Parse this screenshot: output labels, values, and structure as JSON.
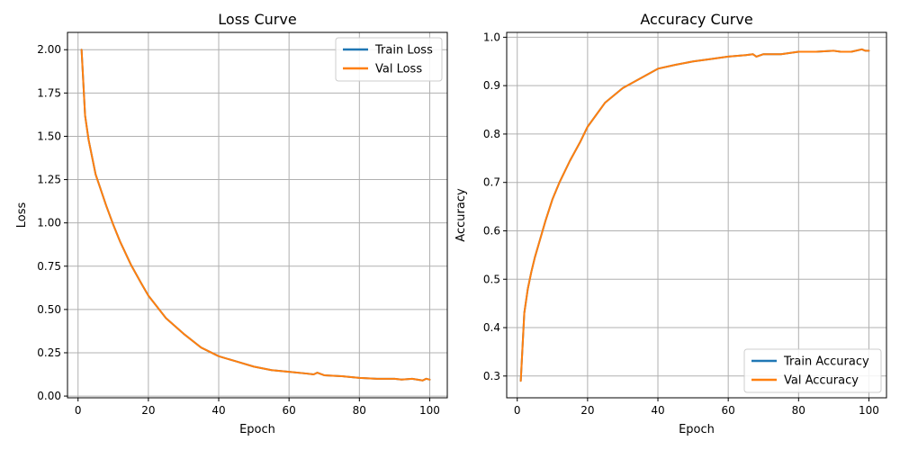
{
  "colors": {
    "train": "#1f77b4",
    "val": "#ff7f0e",
    "grid": "#b0b0b0"
  },
  "chart_data": [
    {
      "type": "line",
      "title": "Loss Curve",
      "xlabel": "Epoch",
      "ylabel": "Loss",
      "xlim": [
        -3,
        105
      ],
      "ylim": [
        -0.01,
        2.1
      ],
      "xticks": [
        0,
        20,
        40,
        60,
        80,
        100
      ],
      "yticks": [
        0.0,
        0.25,
        0.5,
        0.75,
        1.0,
        1.25,
        1.5,
        1.75,
        2.0
      ],
      "ytick_labels": [
        "0.00",
        "0.25",
        "0.50",
        "0.75",
        "1.00",
        "1.25",
        "1.50",
        "1.75",
        "2.00"
      ],
      "grid": true,
      "legend_position": "top-right",
      "x": [
        1,
        2,
        3,
        4,
        5,
        6,
        8,
        10,
        12,
        15,
        18,
        20,
        25,
        30,
        35,
        40,
        45,
        50,
        55,
        60,
        65,
        67,
        68,
        70,
        75,
        80,
        85,
        90,
        92,
        95,
        98,
        99,
        100
      ],
      "series": [
        {
          "name": "Train Loss",
          "color_key": "train",
          "values": [
            2.0,
            1.62,
            1.48,
            1.38,
            1.28,
            1.22,
            1.1,
            0.99,
            0.89,
            0.76,
            0.65,
            0.58,
            0.45,
            0.36,
            0.28,
            0.23,
            0.2,
            0.17,
            0.15,
            0.14,
            0.13,
            0.125,
            0.135,
            0.12,
            0.115,
            0.105,
            0.1,
            0.1,
            0.095,
            0.1,
            0.09,
            0.1,
            0.095
          ]
        },
        {
          "name": "Val Loss",
          "color_key": "val",
          "values": [
            2.0,
            1.62,
            1.48,
            1.38,
            1.28,
            1.22,
            1.1,
            0.99,
            0.89,
            0.76,
            0.65,
            0.58,
            0.45,
            0.36,
            0.28,
            0.23,
            0.2,
            0.17,
            0.15,
            0.14,
            0.13,
            0.125,
            0.135,
            0.12,
            0.115,
            0.105,
            0.1,
            0.1,
            0.095,
            0.1,
            0.09,
            0.1,
            0.095
          ]
        }
      ]
    },
    {
      "type": "line",
      "title": "Accuracy Curve",
      "xlabel": "Epoch",
      "ylabel": "Accuracy",
      "xlim": [
        -3,
        105
      ],
      "ylim": [
        0.255,
        1.01
      ],
      "xticks": [
        0,
        20,
        40,
        60,
        80,
        100
      ],
      "yticks": [
        0.3,
        0.4,
        0.5,
        0.6,
        0.7,
        0.8,
        0.9,
        1.0
      ],
      "ytick_labels": [
        "0.3",
        "0.4",
        "0.5",
        "0.6",
        "0.7",
        "0.8",
        "0.9",
        "1.0"
      ],
      "grid": true,
      "legend_position": "bottom-right",
      "x": [
        1,
        2,
        3,
        4,
        5,
        6,
        8,
        10,
        12,
        15,
        18,
        20,
        25,
        30,
        35,
        40,
        45,
        50,
        55,
        60,
        65,
        67,
        68,
        70,
        75,
        80,
        85,
        90,
        92,
        95,
        98,
        99,
        100
      ],
      "series": [
        {
          "name": "Train Accuracy",
          "color_key": "train",
          "values": [
            0.29,
            0.43,
            0.48,
            0.515,
            0.545,
            0.57,
            0.62,
            0.665,
            0.7,
            0.745,
            0.785,
            0.815,
            0.865,
            0.895,
            0.915,
            0.935,
            0.943,
            0.95,
            0.955,
            0.96,
            0.963,
            0.965,
            0.96,
            0.965,
            0.965,
            0.97,
            0.97,
            0.972,
            0.97,
            0.97,
            0.975,
            0.972,
            0.972
          ]
        },
        {
          "name": "Val Accuracy",
          "color_key": "val",
          "values": [
            0.29,
            0.43,
            0.48,
            0.515,
            0.545,
            0.57,
            0.62,
            0.665,
            0.7,
            0.745,
            0.785,
            0.815,
            0.865,
            0.895,
            0.915,
            0.935,
            0.943,
            0.95,
            0.955,
            0.96,
            0.963,
            0.965,
            0.96,
            0.965,
            0.965,
            0.97,
            0.97,
            0.972,
            0.97,
            0.97,
            0.975,
            0.972,
            0.972
          ]
        }
      ]
    }
  ]
}
